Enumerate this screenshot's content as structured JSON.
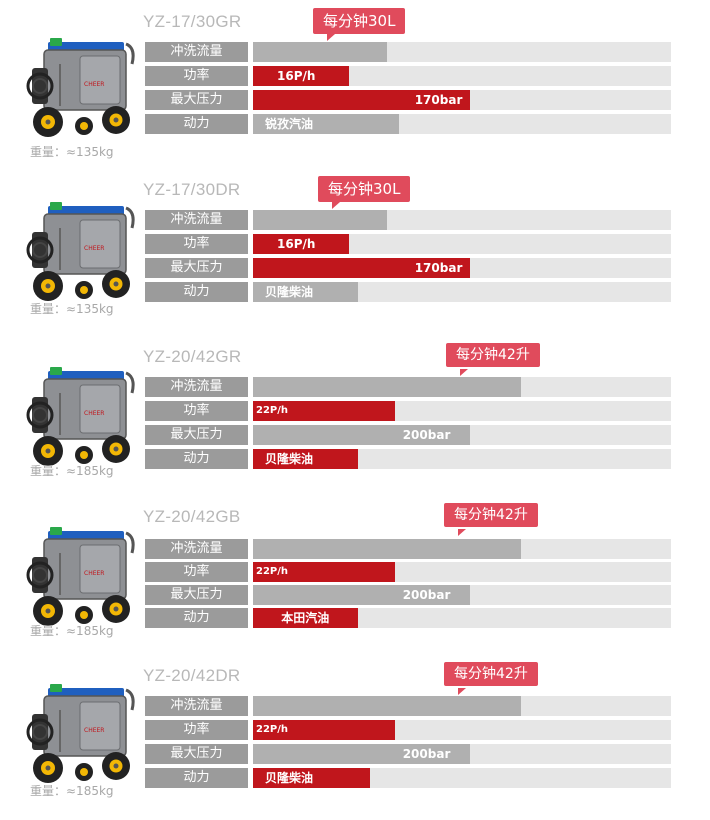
{
  "labels": {
    "flow": "冲洗流量",
    "power": "功率",
    "pressure": "最大压力",
    "engine": "动力"
  },
  "icons": {
    "machine": "pressure-washer-image"
  },
  "colors": {
    "accent_red": "#c0161c",
    "badge_red": "#e04b5c",
    "bar_grey": "#b0b0b0",
    "track_grey": "#e6e6e6",
    "label_grey": "#9b9b9b"
  },
  "products": [
    {
      "model": "YZ-17/30GR",
      "badge": "每分钟30L",
      "power": "16P/h",
      "pressure": "170bar",
      "engine": "锐孜汽油",
      "weight": "重量：≈135kg",
      "flow_level": 0.32,
      "power_level": 0.23,
      "pressure_level": 0.52,
      "engine_level": 0.35
    },
    {
      "model": "YZ-17/30DR",
      "badge": "每分钟30L",
      "power": "16P/h",
      "pressure": "170bar",
      "engine": "贝隆柴油",
      "weight": "重量：≈135kg",
      "flow_level": 0.32,
      "power_level": 0.23,
      "pressure_level": 0.52,
      "engine_level": 0.25
    },
    {
      "model": "YZ-20/42GR",
      "badge": "每分钟42升",
      "power": "22P/h",
      "pressure": "200bar",
      "engine": "贝隆柴油",
      "weight": "重量：≈185kg",
      "flow_level": 0.64,
      "power_level": 0.34,
      "pressure_level": 0.52,
      "engine_level": 0.25
    },
    {
      "model": "YZ-20/42GB",
      "badge": "每分钟42升",
      "power": "22P/h",
      "pressure": "200bar",
      "engine": "本田汽油",
      "weight": "重量：≈185kg",
      "flow_level": 0.64,
      "power_level": 0.34,
      "pressure_level": 0.52,
      "engine_level": 0.25
    },
    {
      "model": "YZ-20/42DR",
      "badge": "每分钟42升",
      "power": "22P/h",
      "pressure": "200bar",
      "engine": "贝隆柴油",
      "weight": "重量：≈185kg",
      "flow_level": 0.64,
      "power_level": 0.34,
      "pressure_level": 0.52,
      "engine_level": 0.28
    }
  ]
}
